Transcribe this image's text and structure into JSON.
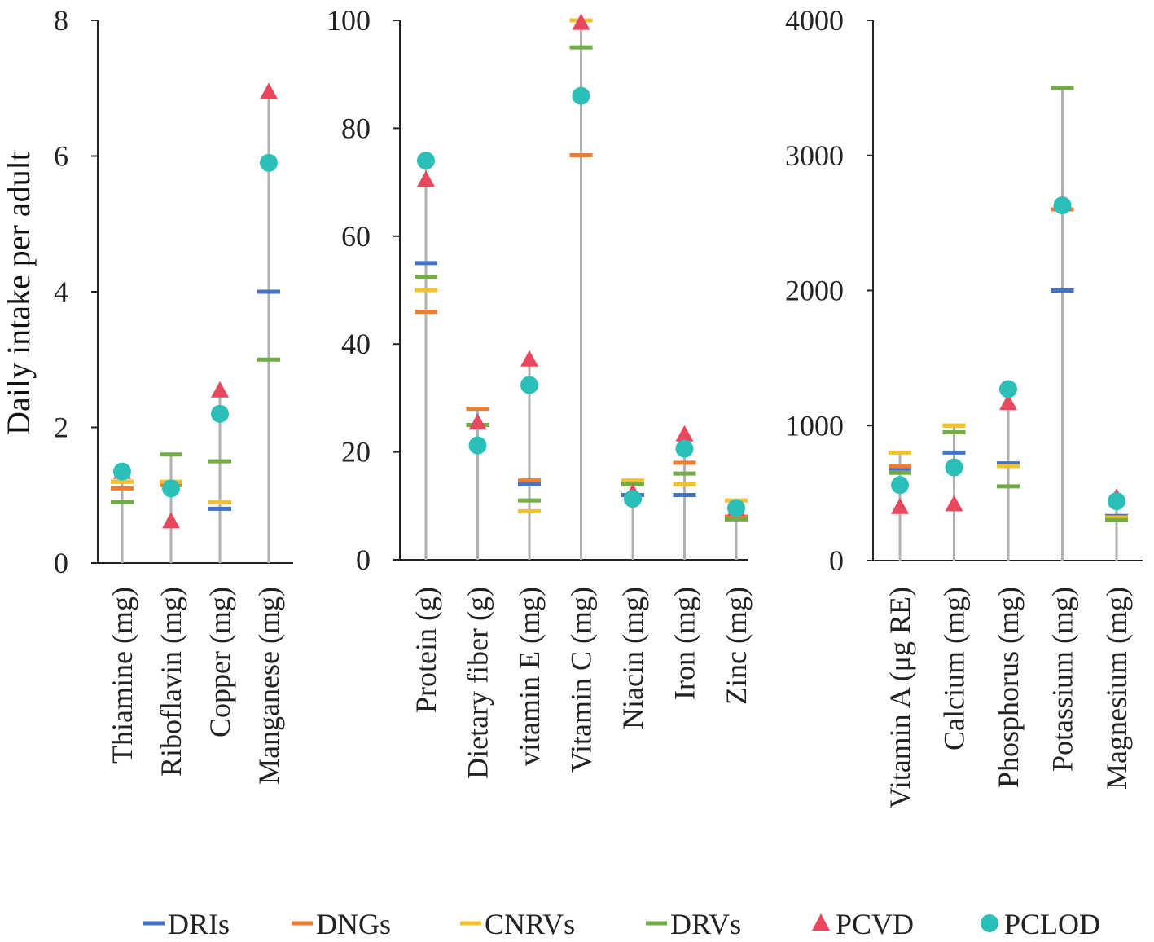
{
  "chart_data": {
    "type": "scatter",
    "ylabel": "Daily intake per adult",
    "series": [
      {
        "name": "DRIs",
        "marker": "dash",
        "color": "#4472C4"
      },
      {
        "name": "DNGs",
        "marker": "dash",
        "color": "#ED7D31"
      },
      {
        "name": "CNRVs",
        "marker": "dash",
        "color": "#F2C12E"
      },
      {
        "name": "DRVs",
        "marker": "dash",
        "color": "#70AD47"
      },
      {
        "name": "PCVD",
        "marker": "triangle",
        "color": "#E8485E"
      },
      {
        "name": "PCLOD",
        "marker": "circle",
        "color": "#2ABFB8"
      }
    ],
    "panels": [
      {
        "ylim": [
          0,
          8
        ],
        "yticks": [
          "0",
          "2",
          "4",
          "6",
          "8"
        ],
        "categories": [
          {
            "label": "Thiamine (mg)",
            "DRIs": 1.2,
            "DNGs": 1.1,
            "CNRVs": 1.2,
            "DRVs": 0.9,
            "PCVD": 1.35,
            "PCLOD": 1.35
          },
          {
            "label": "Riboflavin (mg)",
            "DRIs": 1.15,
            "DNGs": 1.15,
            "CNRVs": 1.2,
            "DRVs": 1.6,
            "PCVD": 0.62,
            "PCLOD": 1.1
          },
          {
            "label": "Copper (mg)",
            "DRIs": 0.8,
            "DNGs": null,
            "CNRVs": 0.9,
            "DRVs": 1.5,
            "PCVD": 2.55,
            "PCLOD": 2.2
          },
          {
            "label": "Manganese (mg)",
            "DRIs": 4.0,
            "DNGs": null,
            "CNRVs": null,
            "DRVs": 3.0,
            "PCVD": 6.95,
            "PCLOD": 5.9
          }
        ]
      },
      {
        "ylim": [
          0,
          100
        ],
        "yticks": [
          "0",
          "20",
          "40",
          "60",
          "80",
          "100"
        ],
        "categories": [
          {
            "label": "Protein (g)",
            "DRIs": 55,
            "DNGs": 46,
            "CNRVs": 50,
            "DRVs": 52.5,
            "PCVD": 70.5,
            "PCLOD": 74
          },
          {
            "label": "Dietary fiber (g)",
            "DRIs": null,
            "DNGs": 28,
            "CNRVs": 25,
            "DRVs": 25,
            "PCVD": 25.5,
            "PCLOD": 21.2
          },
          {
            "label": "vitamin E (mg)",
            "DRIs": 14,
            "DNGs": 14.7,
            "CNRVs": 9,
            "DRVs": 11,
            "PCVD": 37.2,
            "PCLOD": 32.4
          },
          {
            "label": "Vitamin C (mg)",
            "DRIs": null,
            "DNGs": 75,
            "CNRVs": 100,
            "DRVs": 95,
            "PCVD": 99.6,
            "PCLOD": 86
          },
          {
            "label": "Niacin (mg)",
            "DRIs": 12,
            "DNGs": 14,
            "CNRVs": 14.7,
            "DRVs": 14,
            "PCVD": 12.5,
            "PCLOD": 11.3
          },
          {
            "label": "Iron (mg)",
            "DRIs": 12,
            "DNGs": 18,
            "CNRVs": 14,
            "DRVs": 16,
            "PCVD": 23.3,
            "PCLOD": 20.6
          },
          {
            "label": "Zinc (mg)",
            "DRIs": 8,
            "DNGs": 8,
            "CNRVs": 11,
            "DRVs": 7.5,
            "PCVD": 9.5,
            "PCLOD": 9.6
          }
        ]
      },
      {
        "ylim": [
          0,
          4000
        ],
        "yticks": [
          "0",
          "1000",
          "2000",
          "3000",
          "4000"
        ],
        "categories": [
          {
            "label": "Vitamin A (μg RE)",
            "DRIs": 680,
            "DNGs": 700,
            "CNRVs": 800,
            "DRVs": 650,
            "PCVD": 400,
            "PCLOD": 560
          },
          {
            "label": "Calcium (mg)",
            "DRIs": 800,
            "DNGs": 1000,
            "CNRVs": 1000,
            "DRVs": 950,
            "PCVD": 420,
            "PCLOD": 690
          },
          {
            "label": "Phosphorus (mg)",
            "DRIs": 720,
            "DNGs": 700,
            "CNRVs": 700,
            "DRVs": 550,
            "PCVD": 1170,
            "PCLOD": 1270
          },
          {
            "label": "Potassium (mg)",
            "DRIs": 2000,
            "DNGs": 2600,
            "CNRVs": null,
            "DRVs": 3500,
            "PCVD": 2640,
            "PCLOD": 2630
          },
          {
            "label": "Magnesium (mg)",
            "DRIs": 330,
            "DNGs": 320,
            "CNRVs": 320,
            "DRVs": 300,
            "PCVD": 470,
            "PCLOD": 440
          }
        ]
      }
    ]
  }
}
